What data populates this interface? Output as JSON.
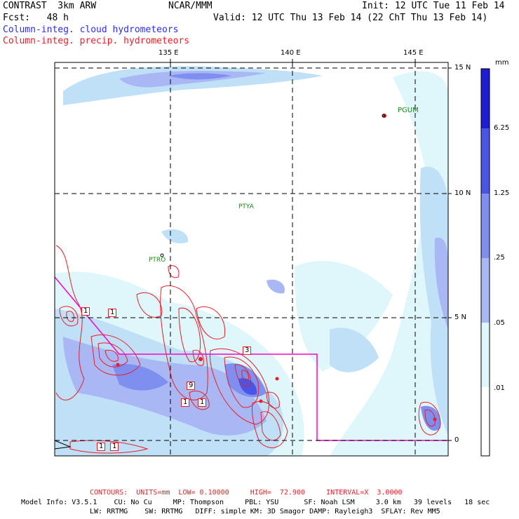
{
  "header": {
    "model": "CONTRAST  3km ARW",
    "org": "NCAR/MMM",
    "init": "Init: 12 UTC Tue 11 Feb 14",
    "fcst": "Fcst:   48 h",
    "valid": "Valid: 12 UTC Thu 13 Feb 14 (22 ChT Thu 13 Feb 14)",
    "field1": "Column-integ. cloud hydrometeors",
    "field2": "Column-integ. precip. hydrometeors"
  },
  "colors": {
    "field1": "#2b2bff",
    "field2": "#ee1c25",
    "box": "#ff00cc",
    "station": "#1a8a1a",
    "scale": [
      "#ffffff",
      "#dff6fb",
      "#bfe0f6",
      "#a9b8f5",
      "#7f8ff0",
      "#4a55e8",
      "#1d1dd8"
    ]
  },
  "map": {
    "lon_labels": [
      "135 E",
      "140 E",
      "145 E"
    ],
    "lat_labels": [
      "15 N",
      "10 N",
      "5 N",
      "0"
    ],
    "stations": [
      "PGUM",
      "PTYA",
      "PTRO"
    ],
    "contour_labels": [
      "1",
      "1",
      "3",
      "9",
      "1",
      "1",
      "1",
      "1"
    ]
  },
  "colorbar": {
    "unit": "mm",
    "levels": [
      "6.25",
      "1.25",
      ".25",
      ".05",
      ".01"
    ]
  },
  "footer": {
    "contours": "CONTOURS:  UNITS=mm  LOW= 0.10000     HIGH=  72.900     INTERVAL=X  3.0000",
    "info1": "Model Info: V3.5.1    CU: No Cu     MP: Thompson     PBL: YSU      SF: Noah LSM     3.0 km   39 levels   18 sec",
    "info2": "LW: RRTMG    SW: RRTMG   DIFF: simple KM: 3D Smagor DAMP: Rayleigh3  SFLAY: Rev MM5"
  }
}
